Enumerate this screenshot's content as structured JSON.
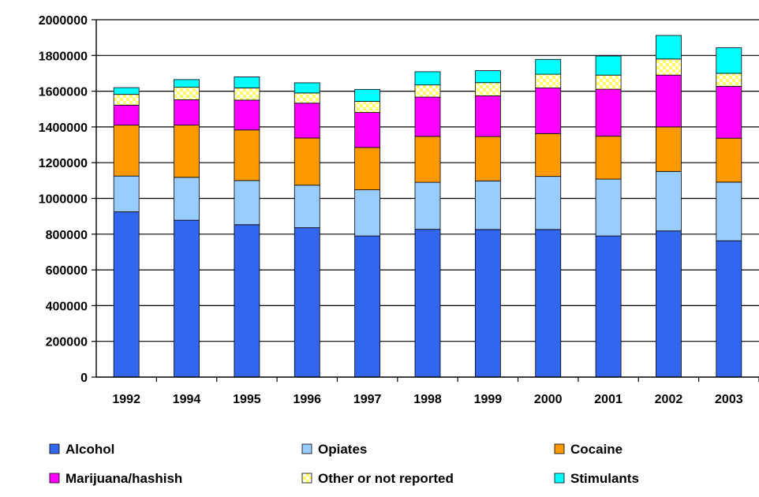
{
  "chart_data": {
    "type": "bar",
    "stacked": true,
    "title": "",
    "xlabel": "",
    "ylabel": "",
    "ylim": [
      0,
      2000000
    ],
    "y_ticks": [
      0,
      200000,
      400000,
      600000,
      800000,
      1000000,
      1200000,
      1400000,
      1600000,
      1800000,
      2000000
    ],
    "y_tick_labels": [
      "0",
      "200000",
      "400000",
      "600000",
      "800000",
      "1000000",
      "1200000",
      "1400000",
      "1600000",
      "1800000",
      "2000000"
    ],
    "grid": "horizontal",
    "legend_position": "bottom",
    "categories": [
      "1992",
      "1994",
      "1995",
      "1996",
      "1997",
      "1998",
      "1999",
      "2000",
      "2001",
      "2002",
      "2003"
    ],
    "series": [
      {
        "name": "Alcohol",
        "color": "#3366ee",
        "values": [
          925000,
          878000,
          853000,
          836000,
          790000,
          827000,
          826000,
          826000,
          790000,
          818000,
          763000
        ]
      },
      {
        "name": "Opiates",
        "color": "#99ccff",
        "values": [
          200000,
          240000,
          247000,
          238000,
          258000,
          263000,
          272000,
          297000,
          318000,
          333000,
          328000
        ]
      },
      {
        "name": "Cocaine",
        "color": "#ff9900",
        "values": [
          285000,
          292000,
          283000,
          264000,
          237000,
          257000,
          248000,
          240000,
          240000,
          249000,
          246000
        ]
      },
      {
        "name": "Marijuana/hashish",
        "color": "#ff00ff",
        "values": [
          112000,
          142000,
          167000,
          195000,
          196000,
          220000,
          228000,
          255000,
          263000,
          290000,
          290000
        ]
      },
      {
        "name": "Other or not reported",
        "color": "#ffff66",
        "pattern": "checker",
        "values": [
          60000,
          70000,
          68000,
          57000,
          62000,
          68000,
          74000,
          77000,
          79000,
          90000,
          73000
        ]
      },
      {
        "name": "Stimulants",
        "color": "#00ffff",
        "values": [
          38000,
          43000,
          62000,
          57000,
          67000,
          74000,
          67000,
          83000,
          107000,
          132000,
          143000
        ]
      }
    ]
  }
}
